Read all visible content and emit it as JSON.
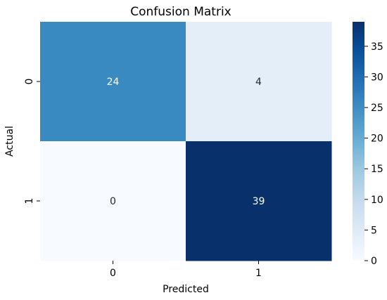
{
  "chart_data": {
    "type": "heatmap",
    "title": "Confusion Matrix",
    "xlabel": "Predicted",
    "ylabel": "Actual",
    "x_categories": [
      "0",
      "1"
    ],
    "y_categories": [
      "0",
      "1"
    ],
    "values": [
      [
        24,
        4
      ],
      [
        0,
        39
      ]
    ],
    "cell_colors": [
      [
        "#3a8ac2",
        "#e3eef8"
      ],
      [
        "#f7fbff",
        "#08306b"
      ]
    ],
    "annotation_colors": [
      [
        "#ffffff",
        "#262626"
      ],
      [
        "#262626",
        "#ffffff"
      ]
    ],
    "colorbar": {
      "range": [
        0,
        39
      ],
      "ticks": [
        "0",
        "5",
        "10",
        "15",
        "20",
        "25",
        "30",
        "35"
      ],
      "tick_values": [
        0,
        5,
        10,
        15,
        20,
        25,
        30,
        35
      ],
      "colormap": "Blues",
      "stops": [
        "#f7fbff",
        "#deebf7",
        "#c6dbef",
        "#9ecae1",
        "#6baed6",
        "#4292c6",
        "#2171b5",
        "#08519c",
        "#08306b"
      ]
    }
  }
}
